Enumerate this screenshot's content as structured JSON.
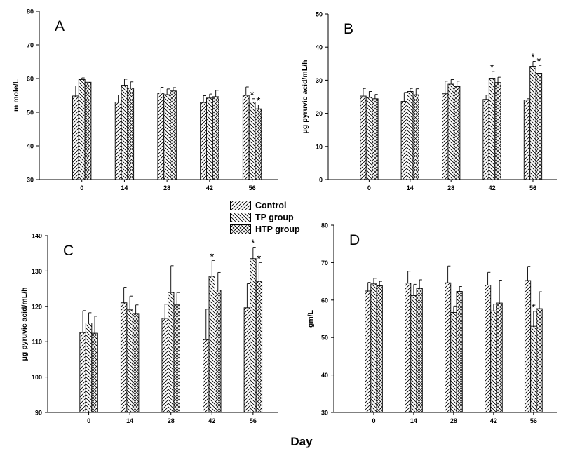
{
  "xlabel": "Day",
  "colors": {
    "axis": "#000000",
    "bar_fill": "#ffffff",
    "hatch": "#000000"
  },
  "legend": [
    {
      "name": "Control",
      "pattern": "diag-up"
    },
    {
      "name": "TP group",
      "pattern": "diag-down"
    },
    {
      "name": "HTP group",
      "pattern": "cross"
    }
  ],
  "chart_data": [
    {
      "type": "bar",
      "panel": "A",
      "ylabel": "m mole/L",
      "ylim": [
        30,
        80
      ],
      "yticks": [
        30,
        40,
        50,
        60,
        70,
        80
      ],
      "categories": [
        "0",
        "14",
        "28",
        "42",
        "56"
      ],
      "series": [
        {
          "name": "Control",
          "values": [
            54.8,
            53.0,
            55.7,
            52.9,
            55.0
          ],
          "errors": [
            3.0,
            2.1,
            1.7,
            2.0,
            2.5
          ],
          "sig": [
            false,
            false,
            false,
            false,
            false
          ]
        },
        {
          "name": "TP group",
          "values": [
            59.7,
            58.0,
            55.2,
            54.2,
            53.0
          ],
          "errors": [
            0.5,
            1.8,
            1.7,
            1.2,
            1.0
          ],
          "sig": [
            false,
            false,
            false,
            false,
            true
          ]
        },
        {
          "name": "HTP group",
          "values": [
            58.9,
            57.2,
            56.3,
            54.6,
            51.0
          ],
          "errors": [
            1.0,
            1.8,
            1.0,
            1.9,
            1.2
          ],
          "sig": [
            false,
            false,
            false,
            false,
            true
          ]
        }
      ]
    },
    {
      "type": "bar",
      "panel": "B",
      "ylabel": "μg pyruvic acid/mL/h",
      "ylim": [
        0,
        50
      ],
      "yticks": [
        0,
        10,
        20,
        30,
        40,
        50
      ],
      "categories": [
        "0",
        "14",
        "28",
        "42",
        "56"
      ],
      "series": [
        {
          "name": "Control",
          "values": [
            25.2,
            23.6,
            25.9,
            24.2,
            24.0
          ],
          "errors": [
            2.3,
            2.7,
            3.8,
            1.3,
            0.4
          ],
          "sig": [
            false,
            false,
            false,
            false,
            false
          ]
        },
        {
          "name": "TP group",
          "values": [
            24.8,
            26.6,
            28.8,
            30.6,
            34.2
          ],
          "errors": [
            1.8,
            0.9,
            1.4,
            2.0,
            1.5
          ],
          "sig": [
            false,
            false,
            false,
            true,
            true
          ]
        },
        {
          "name": "HTP group",
          "values": [
            24.4,
            25.6,
            28.1,
            29.3,
            32.1
          ],
          "errors": [
            1.3,
            1.8,
            1.6,
            1.6,
            2.4
          ],
          "sig": [
            false,
            false,
            false,
            false,
            true
          ]
        }
      ]
    },
    {
      "type": "bar",
      "panel": "C",
      "ylabel": "μg pyruvic acid/mL/h",
      "ylim": [
        90,
        140
      ],
      "yticks": [
        90,
        100,
        110,
        120,
        130,
        140
      ],
      "categories": [
        "0",
        "14",
        "28",
        "42",
        "56"
      ],
      "series": [
        {
          "name": "Control",
          "values": [
            112.6,
            121.0,
            116.6,
            110.6,
            119.6
          ],
          "errors": [
            6.2,
            4.4,
            4.0,
            8.6,
            6.8
          ],
          "sig": [
            false,
            false,
            false,
            false,
            false
          ]
        },
        {
          "name": "TP group",
          "values": [
            115.3,
            119.0,
            123.9,
            128.5,
            133.5
          ],
          "errors": [
            2.9,
            3.9,
            7.6,
            4.5,
            3.2
          ],
          "sig": [
            false,
            false,
            false,
            true,
            true
          ]
        },
        {
          "name": "HTP group",
          "values": [
            112.4,
            118.0,
            120.4,
            124.6,
            127.1
          ],
          "errors": [
            4.8,
            2.4,
            3.5,
            5.0,
            5.3
          ],
          "sig": [
            false,
            false,
            false,
            false,
            true
          ]
        }
      ]
    },
    {
      "type": "bar",
      "panel": "D",
      "ylabel": "gm/L",
      "ylim": [
        30,
        80
      ],
      "yticks": [
        30,
        40,
        50,
        60,
        70,
        80
      ],
      "categories": [
        "0",
        "14",
        "28",
        "42",
        "56"
      ],
      "series": [
        {
          "name": "Control",
          "values": [
            62.4,
            64.5,
            64.6,
            64.0,
            65.2
          ],
          "errors": [
            2.3,
            3.2,
            4.5,
            3.4,
            3.8
          ],
          "sig": [
            false,
            false,
            false,
            false,
            false
          ]
        },
        {
          "name": "TP group",
          "values": [
            64.3,
            61.2,
            56.7,
            57.1,
            53.0
          ],
          "errors": [
            1.5,
            3.0,
            1.7,
            1.8,
            4.0
          ],
          "sig": [
            false,
            false,
            false,
            false,
            true
          ]
        },
        {
          "name": "HTP group",
          "values": [
            63.8,
            63.1,
            62.3,
            59.2,
            57.7
          ],
          "errors": [
            1.2,
            2.3,
            1.3,
            6.1,
            4.5
          ],
          "sig": [
            false,
            false,
            false,
            false,
            false
          ]
        }
      ]
    }
  ]
}
